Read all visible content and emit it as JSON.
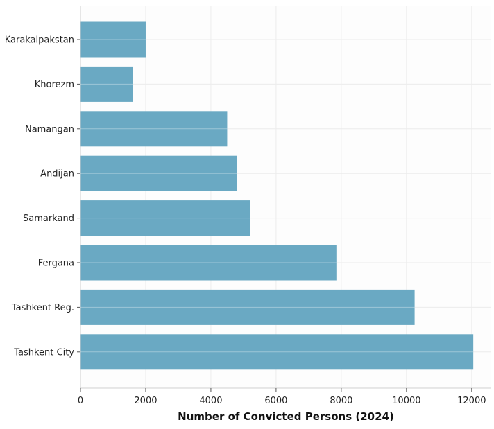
{
  "chart_data": {
    "type": "bar",
    "orientation": "horizontal",
    "title": "",
    "xlabel": "Number of Convicted Persons (2024)",
    "ylabel": "",
    "categories": [
      "Karakalpakstan",
      "Khorezm",
      "Namangan",
      "Andijan",
      "Samarkand",
      "Fergana",
      "Tashkent Reg.",
      "Tashkent City"
    ],
    "values": [
      2000,
      1600,
      4500,
      4800,
      5200,
      7850,
      10250,
      12050
    ],
    "xlim": [
      0,
      12600
    ],
    "xticks": [
      0,
      2000,
      4000,
      6000,
      8000,
      10000,
      12000
    ],
    "xtick_labels": [
      "0",
      "2000",
      "4000",
      "6000",
      "8000",
      "10000",
      "12000"
    ],
    "grid": true,
    "bar_color": "#6aa9c3"
  }
}
